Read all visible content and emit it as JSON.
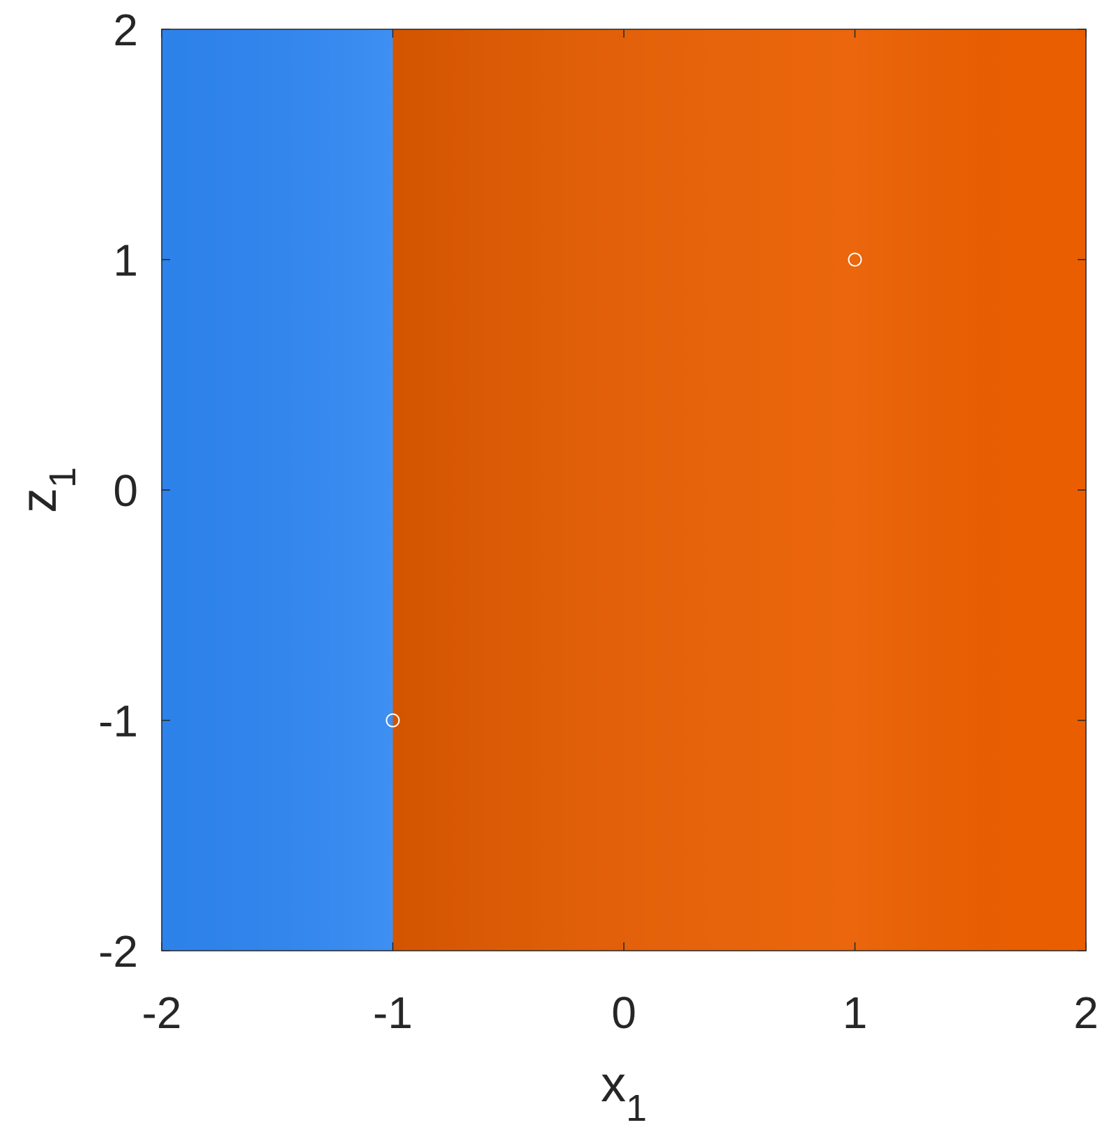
{
  "chart_data": {
    "type": "scatter",
    "xlabel": {
      "text": "x",
      "subscript": "1"
    },
    "ylabel": {
      "text": "z",
      "subscript": "1"
    },
    "regions": [
      {
        "x": [
          -2,
          -1
        ],
        "color": "#2e86f2"
      },
      {
        "x": [
          -1,
          2
        ],
        "color": "#ea5e00"
      }
    ],
    "series": [
      {
        "x": [
          1,
          -1
        ],
        "values": [
          1,
          -1
        ],
        "color": "#ffffff"
      }
    ],
    "xlim": [
      -2,
      2
    ],
    "ylim": [
      -2,
      2
    ],
    "xticks": [
      -2,
      -1,
      0,
      1,
      2
    ],
    "yticks": [
      -2,
      -1,
      0,
      1,
      2
    ]
  }
}
